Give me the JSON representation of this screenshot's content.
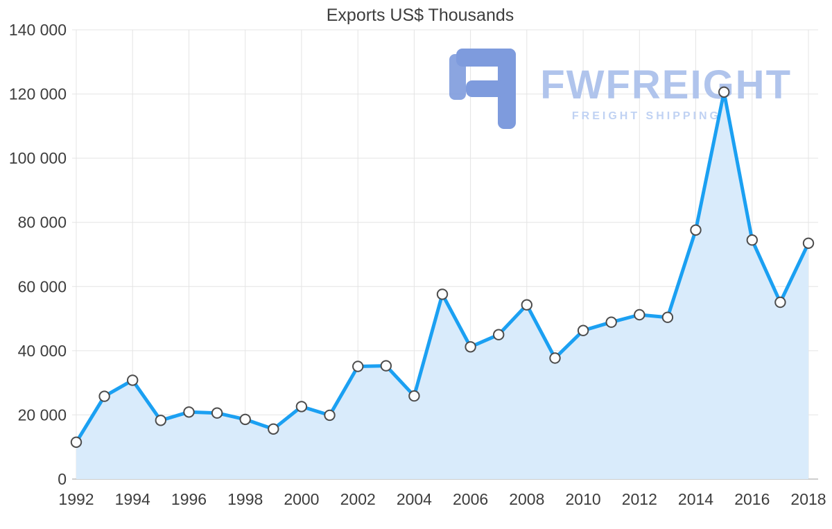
{
  "chart_data": {
    "type": "area",
    "title": "Exports US$ Thousands",
    "xlabel": "",
    "ylabel": "",
    "legend": "none",
    "grid": true,
    "x": [
      1992,
      1993,
      1994,
      1995,
      1996,
      1997,
      1998,
      1999,
      2000,
      2001,
      2002,
      2003,
      2004,
      2005,
      2006,
      2007,
      2008,
      2009,
      2010,
      2011,
      2012,
      2013,
      2014,
      2015,
      2016,
      2017,
      2018
    ],
    "values": [
      11500,
      25800,
      30800,
      18300,
      20900,
      20600,
      18600,
      15600,
      22600,
      19900,
      35100,
      35300,
      25900,
      57600,
      41200,
      45000,
      54300,
      37700,
      46300,
      48900,
      51200,
      50400,
      77600,
      120600,
      74500,
      55100,
      73500
    ],
    "xticks": [
      1992,
      1994,
      1996,
      1998,
      2000,
      2002,
      2004,
      2006,
      2008,
      2010,
      2012,
      2014,
      2016,
      2018
    ],
    "xtick_labels": [
      "1992",
      "1994",
      "1996",
      "1998",
      "2000",
      "2002",
      "2004",
      "2006",
      "2008",
      "2010",
      "2012",
      "2014",
      "2016",
      "2018"
    ],
    "ylim": [
      0,
      140000
    ],
    "yticks": [
      0,
      20000,
      40000,
      60000,
      80000,
      100000,
      120000,
      140000
    ],
    "ytick_labels": [
      "0",
      "20 000",
      "40 000",
      "60 000",
      "80 000",
      "100 000",
      "120 000",
      "140 000"
    ],
    "colors": {
      "line": "#1ba0f2",
      "fill": "#d9ebfb",
      "marker_fill": "#fdfdfd",
      "marker_stroke": "#4c4c4c",
      "grid": "#e4e4e4",
      "axis": "#9e9e9e",
      "text": "#3d3d3d"
    }
  },
  "watermark": {
    "brand": "FWFREIGHT",
    "tagline": "FREIGHT SHIPPING",
    "icon": "fwfreight-logo-icon",
    "icon_color": "#7e9bdd",
    "brand_color": "#b0c4ec",
    "tagline_color": "#c0d2f3"
  }
}
